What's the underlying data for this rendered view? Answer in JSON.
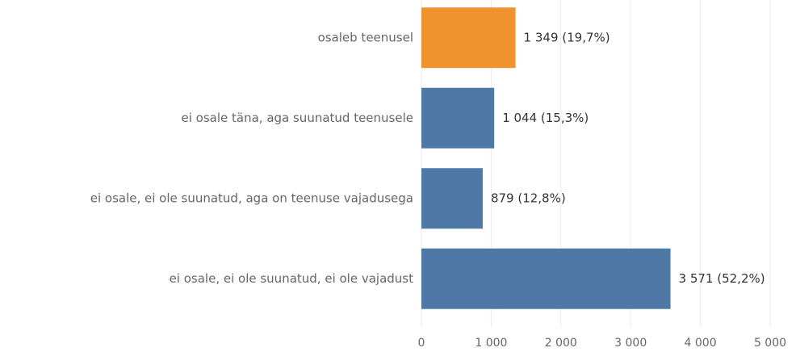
{
  "chart_data": {
    "type": "hbar",
    "categories": [
      "osaleb teenusel",
      "ei osale täna, aga suunatud teenusele",
      "ei osale, ei ole suunatud, aga on teenuse vajadusega",
      "ei osale, ei ole suunatud, ei ole vajadust"
    ],
    "values": [
      1349,
      1044,
      879,
      3571
    ],
    "value_labels": [
      "1 349  (19,7%)",
      "1 044  (15,3%)",
      "879  (12,8%)",
      "3 571  (52,2%)"
    ],
    "colors": [
      "#f0922e",
      "#4e79a7",
      "#4e79a7",
      "#4e79a7"
    ],
    "xlim": [
      0,
      5000
    ],
    "xticks": [
      0,
      {
        "value": 1000,
        "label": "1 000"
      },
      {
        "value": 2000,
        "label": "2 000"
      },
      {
        "value": 3000,
        "label": "3 000"
      },
      {
        "value": 4000,
        "label": "4 000"
      },
      {
        "value": 5000,
        "label": "5 000"
      }
    ],
    "grid": true
  }
}
